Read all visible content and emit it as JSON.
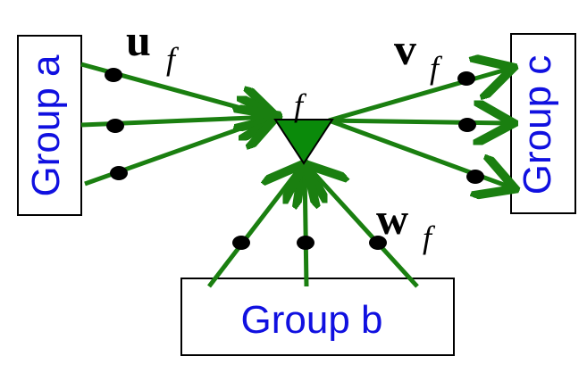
{
  "colors": {
    "arrow": "#1a7f10",
    "node_fill": "#0a8a0a",
    "label": "#1010e0",
    "dot": "#000000",
    "box_border": "#000000"
  },
  "groups": {
    "a": {
      "label": "Group a"
    },
    "b": {
      "label": "Group b"
    },
    "c": {
      "label": "Group c"
    }
  },
  "node": {
    "label": "f"
  },
  "vectors": {
    "u": {
      "symbol": "u",
      "subscript": "f"
    },
    "v": {
      "symbol": "v",
      "subscript": "f"
    },
    "w": {
      "symbol": "w",
      "subscript": "f"
    }
  },
  "edges": {
    "from_group_a": 3,
    "from_group_b": 3,
    "to_group_c": 3
  }
}
